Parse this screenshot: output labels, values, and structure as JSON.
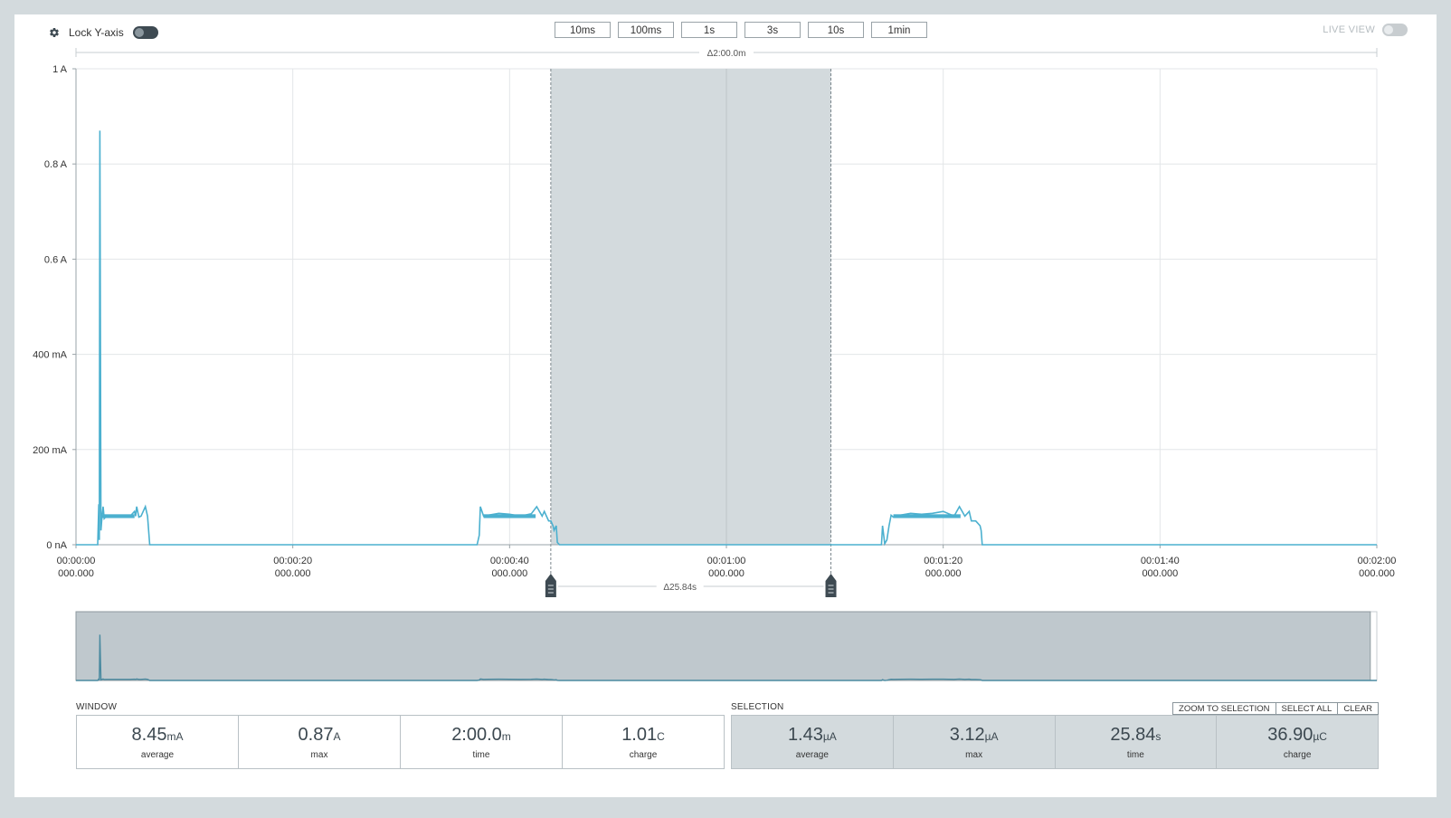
{
  "toolbar": {
    "lock_label": "Lock Y-axis",
    "zoom_buttons": [
      "10ms",
      "100ms",
      "1s",
      "3s",
      "10s",
      "1min"
    ],
    "live_view_label": "LIVE VIEW"
  },
  "chart_data": {
    "type": "line",
    "window_span_label": "Δ2:00.0m",
    "y_ticks": [
      "0 nA",
      "200 mA",
      "400 mA",
      "0.6 A",
      "0.8 A",
      "1 A"
    ],
    "y_tick_values_A": [
      0,
      0.2,
      0.4,
      0.6,
      0.8,
      1.0
    ],
    "ylim_A": [
      0,
      1
    ],
    "x_ticks": [
      {
        "time": "00:00:00",
        "sub": "000.000"
      },
      {
        "time": "00:00:20",
        "sub": "000.000"
      },
      {
        "time": "00:00:40",
        "sub": "000.000"
      },
      {
        "time": "00:01:00",
        "sub": "000.000"
      },
      {
        "time": "00:01:20",
        "sub": "000.000"
      },
      {
        "time": "00:01:40",
        "sub": "000.000"
      },
      {
        "time": "00:02:00",
        "sub": "000.000"
      }
    ],
    "xlim_s": [
      0,
      120
    ],
    "series_color": "#4bb0cf",
    "series": [
      {
        "x": [
          0,
          2.0,
          2.1,
          2.15,
          2.2,
          2.3,
          2.4,
          2.5,
          2.6,
          2.8,
          3.0,
          3.5,
          4.0,
          5.0,
          5.4,
          5.5,
          5.6,
          5.8,
          6.0,
          6.4,
          6.6,
          6.7,
          6.8,
          37.0,
          37.2,
          37.3,
          37.6,
          38.0,
          39.0,
          40.0,
          41.0,
          42.0,
          42.5,
          43.0,
          43.2,
          43.6,
          43.8,
          44.0,
          44.1,
          44.3,
          44.4,
          44.6,
          74.3,
          74.4,
          74.6,
          74.8,
          75.0,
          75.2,
          75.4,
          76.0,
          77.0,
          78.0,
          79.0,
          80.0,
          81.0,
          81.5,
          82.0,
          82.4,
          82.6,
          83.0,
          83.4,
          83.5,
          83.6,
          120
        ],
        "y": [
          0,
          0,
          0.085,
          0.01,
          0.87,
          0.03,
          0.06,
          0.08,
          0.055,
          0.06,
          0.058,
          0.06,
          0.058,
          0.06,
          0.07,
          0.06,
          0.08,
          0.058,
          0.06,
          0.08,
          0.06,
          0.03,
          0,
          0,
          0.02,
          0.08,
          0.06,
          0.062,
          0.066,
          0.064,
          0.06,
          0.065,
          0.08,
          0.06,
          0.07,
          0.05,
          0.05,
          0.04,
          0.03,
          0.04,
          0.005,
          0,
          0,
          0.04,
          0.002,
          0.01,
          0.04,
          0.062,
          0.058,
          0.062,
          0.066,
          0.064,
          0.066,
          0.07,
          0.06,
          0.08,
          0.06,
          0.07,
          0.05,
          0.05,
          0.04,
          0.03,
          0,
          0
        ]
      }
    ],
    "selection": {
      "start_s": 43.8,
      "end_s": 69.64,
      "span_label": "Δ25.84s"
    }
  },
  "window": {
    "label": "WINDOW",
    "stats": [
      {
        "value": "8.45",
        "unit": "mA",
        "label": "average"
      },
      {
        "value": "0.87",
        "unit": "A",
        "label": "max"
      },
      {
        "value": "2:00.0",
        "unit": "m",
        "label": "time"
      },
      {
        "value": "1.01",
        "unit": "C",
        "label": "charge"
      }
    ]
  },
  "selection": {
    "label": "SELECTION",
    "buttons": {
      "zoom": "ZOOM TO SELECTION",
      "select_all": "SELECT ALL",
      "clear": "CLEAR"
    },
    "stats": [
      {
        "value": "1.43",
        "unit": "µA",
        "label": "average"
      },
      {
        "value": "3.12",
        "unit": "µA",
        "label": "max"
      },
      {
        "value": "25.84",
        "unit": "s",
        "label": "time"
      },
      {
        "value": "36.90",
        "unit": "µC",
        "label": "charge"
      }
    ]
  }
}
